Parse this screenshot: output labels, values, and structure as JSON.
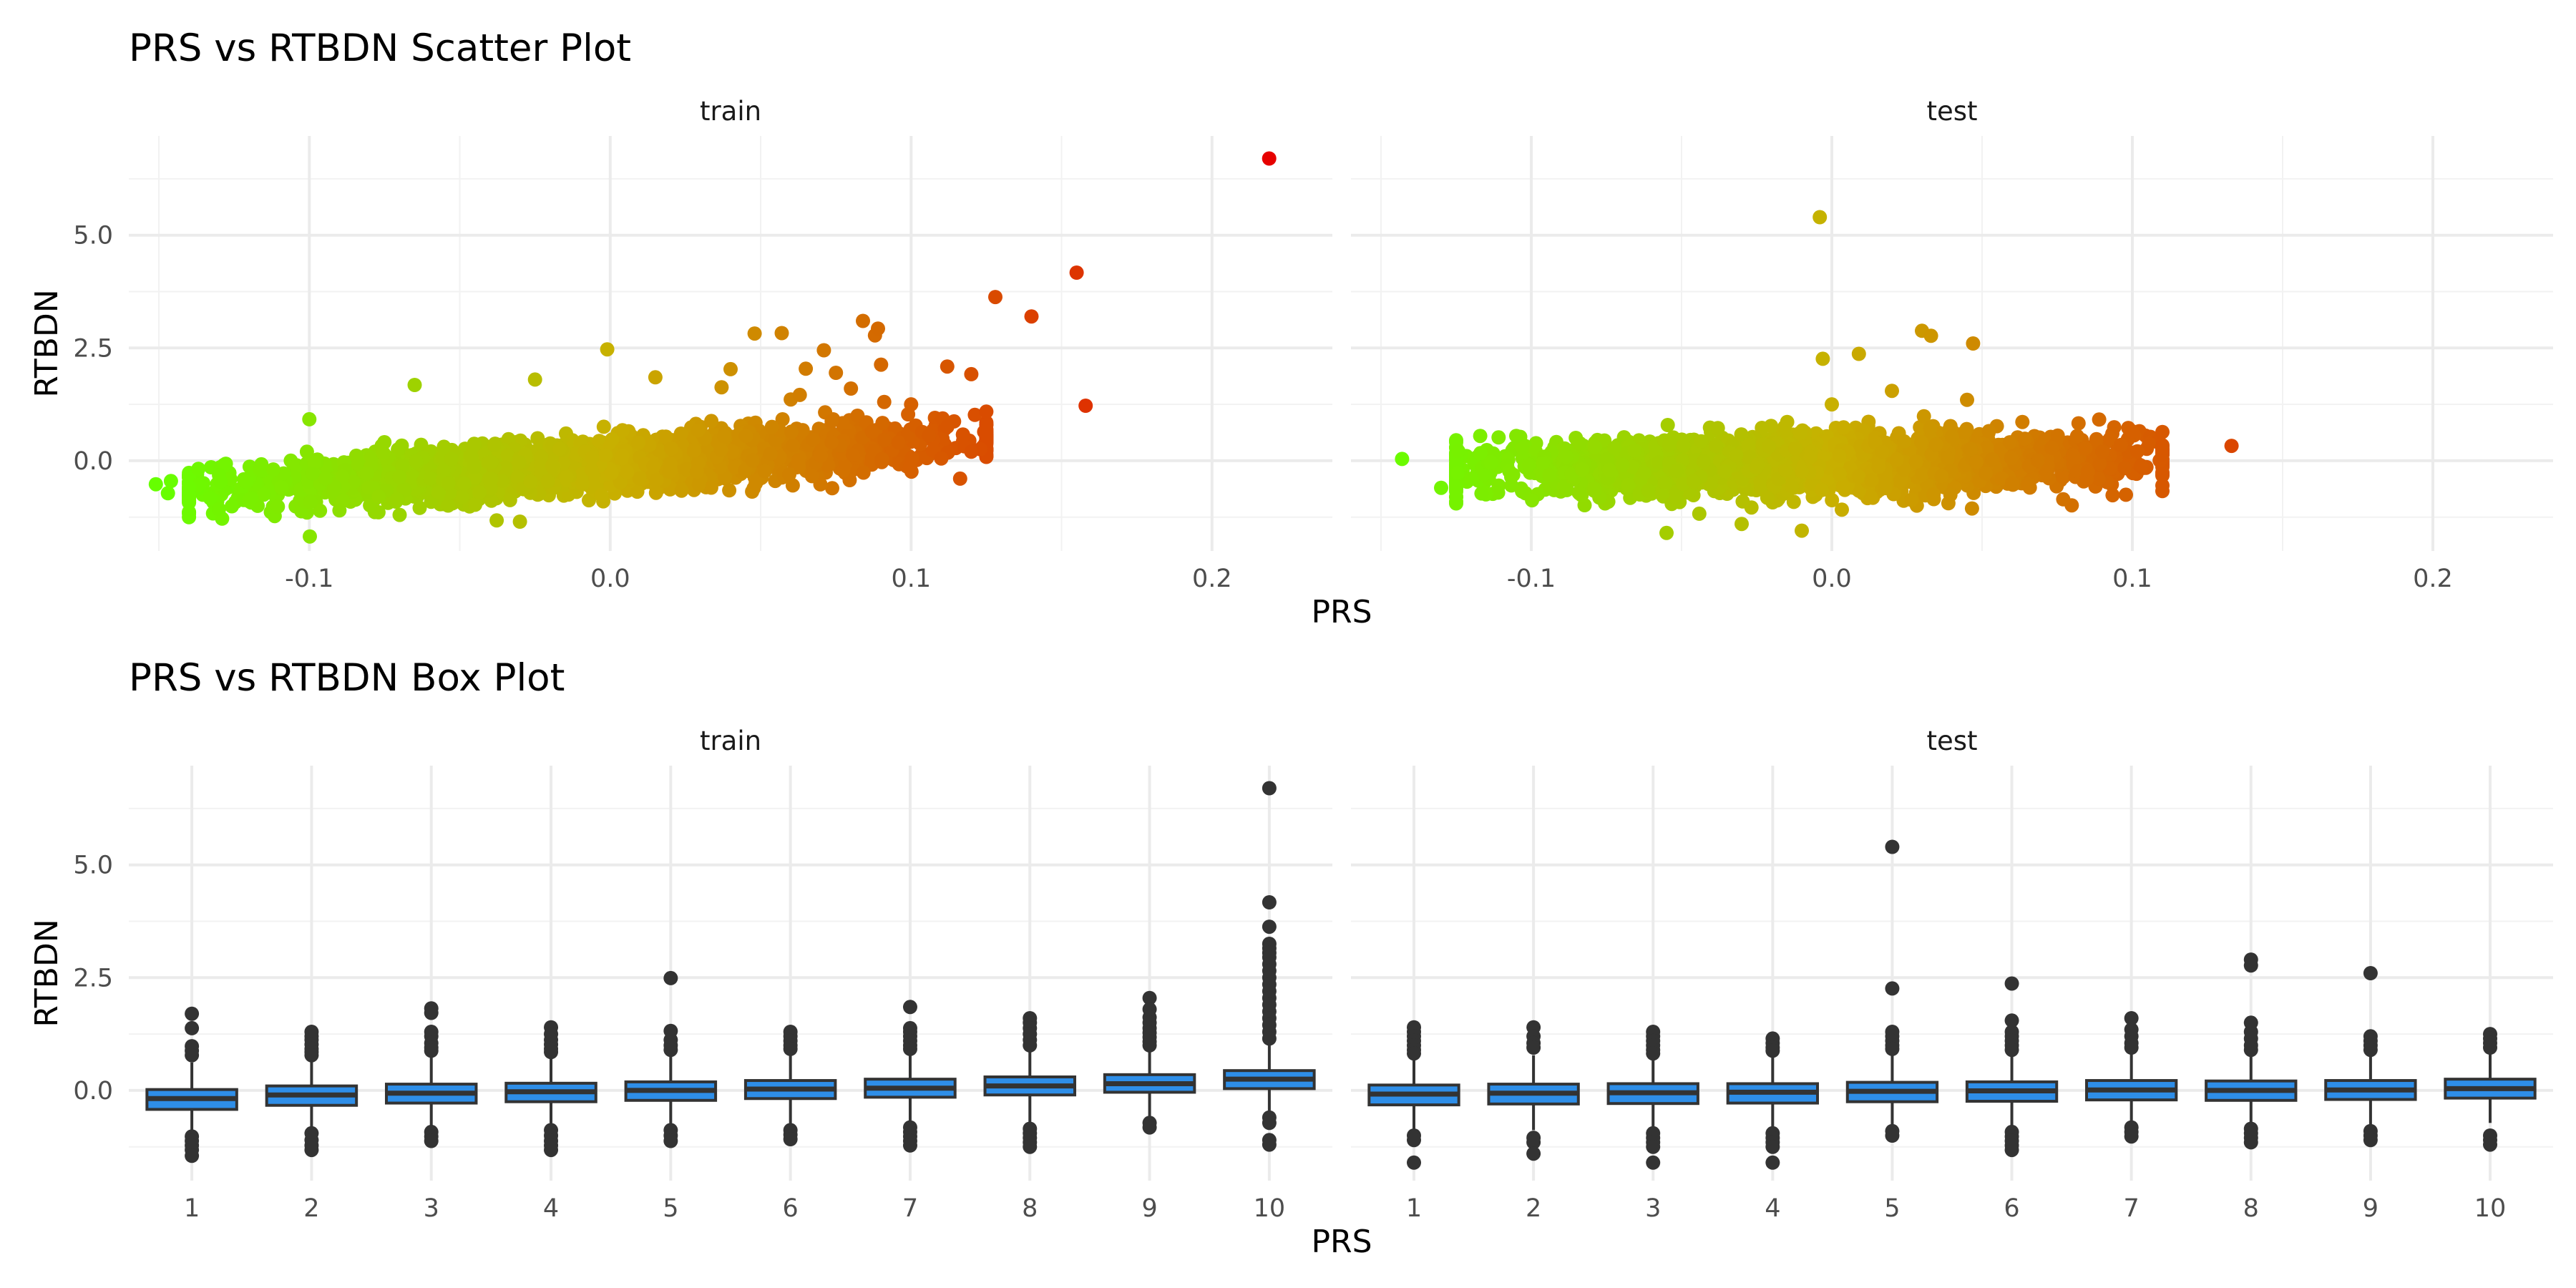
{
  "chart_data": [
    {
      "type": "scatter",
      "title": "PRS vs RTBDN Scatter Plot",
      "xlabel": "PRS",
      "ylabel": "RTBDN",
      "panels": [
        "train",
        "test"
      ],
      "xlim": [
        -0.16,
        0.24
      ],
      "ylim": [
        -2.0,
        7.2
      ],
      "x_ticks": [
        -0.1,
        0.0,
        0.1,
        0.2
      ],
      "x_tick_labels": [
        "-0.1",
        "0.0",
        "0.1",
        "0.2"
      ],
      "y_ticks": [
        0.0,
        2.5,
        5.0
      ],
      "y_tick_labels": [
        "0.0",
        "2.5",
        "5.0"
      ],
      "grid": true,
      "color_scale": {
        "low": "#66ff00",
        "mid": "#c8b000",
        "high": "#e60000"
      },
      "trend": {
        "train": {
          "x_min": -0.14,
          "x_max": 0.125,
          "slope": 4.2,
          "intercept": -0.06,
          "spread": 0.52
        },
        "test": {
          "x_min": -0.125,
          "x_max": 0.11,
          "slope": 1.2,
          "intercept": -0.05,
          "spread": 0.55
        }
      },
      "points": {
        "train": [
          [
            -0.151,
            -0.52
          ],
          [
            -0.147,
            -0.72
          ],
          [
            -0.146,
            -0.45
          ],
          [
            -0.13,
            -0.32
          ],
          [
            -0.1,
            0.92
          ],
          [
            -0.065,
            1.68
          ],
          [
            -0.025,
            1.8
          ],
          [
            -0.001,
            2.47
          ],
          [
            0.015,
            1.85
          ],
          [
            0.037,
            1.63
          ],
          [
            0.04,
            2.03
          ],
          [
            0.048,
            2.82
          ],
          [
            0.057,
            2.83
          ],
          [
            0.06,
            1.36
          ],
          [
            0.063,
            1.46
          ],
          [
            0.065,
            2.04
          ],
          [
            0.071,
            2.45
          ],
          [
            0.075,
            1.95
          ],
          [
            0.08,
            1.6
          ],
          [
            0.084,
            3.1
          ],
          [
            0.088,
            2.78
          ],
          [
            0.089,
            2.93
          ],
          [
            0.09,
            2.13
          ],
          [
            0.099,
            1.03
          ],
          [
            0.1,
            1.25
          ],
          [
            0.112,
            2.09
          ],
          [
            0.12,
            1.92
          ],
          [
            0.128,
            3.63
          ],
          [
            0.14,
            3.2
          ],
          [
            0.155,
            4.17
          ],
          [
            0.158,
            1.22
          ],
          [
            0.219,
            6.7
          ],
          [
            -0.09,
            -1.1
          ],
          [
            -0.03,
            -1.35
          ],
          [
            -0.07,
            -1.2
          ],
          [
            0.11,
            0.05
          ],
          [
            0.12,
            0.2
          ]
        ],
        "test": [
          [
            -0.143,
            0.04
          ],
          [
            -0.13,
            -0.6
          ],
          [
            -0.12,
            -0.4
          ],
          [
            -0.117,
            0.55
          ],
          [
            -0.105,
            0.55
          ],
          [
            -0.004,
            5.4
          ],
          [
            -0.003,
            2.26
          ],
          [
            0.009,
            2.37
          ],
          [
            0.02,
            1.55
          ],
          [
            0.03,
            2.88
          ],
          [
            0.033,
            2.77
          ],
          [
            0.047,
            2.6
          ],
          [
            0.045,
            1.35
          ],
          [
            0.0,
            1.25
          ],
          [
            0.1,
            0.65
          ],
          [
            0.11,
            -0.3
          ],
          [
            0.133,
            0.33
          ],
          [
            -0.055,
            -1.6
          ],
          [
            -0.01,
            -1.55
          ],
          [
            -0.03,
            -1.4
          ],
          [
            0.06,
            -0.5
          ],
          [
            0.09,
            0.2
          ]
        ]
      }
    },
    {
      "type": "box",
      "title": "PRS vs RTBDN Box Plot",
      "xlabel": "PRS",
      "ylabel": "RTBDN",
      "panels": [
        "train",
        "test"
      ],
      "categories": [
        "1",
        "2",
        "3",
        "4",
        "5",
        "6",
        "7",
        "8",
        "9",
        "10"
      ],
      "ylim": [
        -2.0,
        7.2
      ],
      "y_ticks": [
        0.0,
        2.5,
        5.0
      ],
      "y_tick_labels": [
        "0.0",
        "2.5",
        "5.0"
      ],
      "grid": true,
      "box_fill": "#2e8ee8",
      "box_line": "#333333",
      "boxes": {
        "train": [
          {
            "q1": -0.42,
            "median": -0.18,
            "q3": 0.02,
            "low": -1.0,
            "high": 0.62
          },
          {
            "q1": -0.33,
            "median": -0.1,
            "q3": 0.1,
            "low": -0.9,
            "high": 0.7
          },
          {
            "q1": -0.28,
            "median": -0.06,
            "q3": 0.14,
            "low": -0.85,
            "high": 0.75
          },
          {
            "q1": -0.25,
            "median": -0.03,
            "q3": 0.16,
            "low": -0.8,
            "high": 0.78
          },
          {
            "q1": -0.22,
            "median": 0.0,
            "q3": 0.19,
            "low": -0.78,
            "high": 0.8
          },
          {
            "q1": -0.18,
            "median": 0.03,
            "q3": 0.22,
            "low": -0.75,
            "high": 0.83
          },
          {
            "q1": -0.15,
            "median": 0.05,
            "q3": 0.25,
            "low": -0.72,
            "high": 0.86
          },
          {
            "q1": -0.1,
            "median": 0.1,
            "q3": 0.3,
            "low": -0.7,
            "high": 0.9
          },
          {
            "q1": -0.04,
            "median": 0.15,
            "q3": 0.35,
            "low": -0.66,
            "high": 0.95
          },
          {
            "q1": 0.04,
            "median": 0.25,
            "q3": 0.44,
            "low": -0.52,
            "high": 1.0
          }
        ],
        "test": [
          {
            "q1": -0.32,
            "median": -0.08,
            "q3": 0.12,
            "low": -0.9,
            "high": 0.75
          },
          {
            "q1": -0.3,
            "median": -0.06,
            "q3": 0.14,
            "low": -0.88,
            "high": 0.78
          },
          {
            "q1": -0.29,
            "median": -0.05,
            "q3": 0.15,
            "low": -0.85,
            "high": 0.8
          },
          {
            "q1": -0.28,
            "median": -0.04,
            "q3": 0.15,
            "low": -0.85,
            "high": 0.8
          },
          {
            "q1": -0.25,
            "median": -0.02,
            "q3": 0.18,
            "low": -0.8,
            "high": 0.82
          },
          {
            "q1": -0.24,
            "median": -0.01,
            "q3": 0.19,
            "low": -0.8,
            "high": 0.83
          },
          {
            "q1": -0.21,
            "median": 0.01,
            "q3": 0.22,
            "low": -0.77,
            "high": 0.85
          },
          {
            "q1": -0.22,
            "median": 0.0,
            "q3": 0.21,
            "low": -0.78,
            "high": 0.84
          },
          {
            "q1": -0.2,
            "median": 0.01,
            "q3": 0.22,
            "low": -0.76,
            "high": 0.85
          },
          {
            "q1": -0.17,
            "median": 0.04,
            "q3": 0.25,
            "low": -0.72,
            "high": 0.88
          }
        ]
      },
      "outliers": {
        "train": [
          [
            1.7,
            1.38,
            0.98,
            0.88,
            0.78,
            -1.02,
            -1.12,
            -1.22,
            -1.32,
            -1.45
          ],
          [
            1.3,
            1.2,
            1.12,
            1.02,
            0.92,
            0.85,
            0.78,
            -0.95,
            -1.1,
            -1.22,
            -1.32
          ],
          [
            1.82,
            1.72,
            1.3,
            1.2,
            1.05,
            0.95,
            0.88,
            -0.92,
            -1.02,
            -1.12
          ],
          [
            1.4,
            1.25,
            1.12,
            1.02,
            0.92,
            0.85,
            -0.88,
            -1.0,
            -1.12,
            -1.22,
            -1.32
          ],
          [
            2.49,
            1.32,
            1.12,
            1.0,
            0.9,
            -0.88,
            -1.0,
            -1.12
          ],
          [
            1.3,
            1.2,
            1.1,
            1.0,
            0.92,
            -0.88,
            -0.98,
            -1.08
          ],
          [
            1.85,
            1.38,
            1.3,
            1.2,
            1.1,
            1.0,
            0.92,
            -0.82,
            -0.92,
            -1.02,
            -1.12,
            -1.22
          ],
          [
            1.6,
            1.5,
            1.38,
            1.25,
            1.12,
            1.0,
            -0.85,
            -0.95,
            -1.05,
            -1.15,
            -1.25
          ],
          [
            2.05,
            1.8,
            1.62,
            1.5,
            1.38,
            1.28,
            1.18,
            1.08,
            1.0,
            -0.72,
            -0.82
          ],
          [
            6.7,
            4.17,
            3.63,
            3.25,
            3.15,
            3.05,
            2.95,
            2.8,
            2.65,
            2.5,
            2.35,
            2.2,
            2.05,
            1.9,
            1.75,
            1.6,
            1.45,
            1.3,
            1.15,
            -0.6,
            -0.72,
            -1.1,
            -1.2
          ]
        ],
        "test": [
          [
            1.4,
            1.3,
            1.2,
            1.1,
            1.0,
            0.9,
            0.82,
            -1.0,
            -1.1,
            -1.6
          ],
          [
            1.4,
            1.2,
            1.05,
            0.95,
            -1.05,
            -1.15,
            -1.4
          ],
          [
            1.3,
            1.2,
            1.1,
            1.0,
            0.9,
            0.82,
            -0.95,
            -1.05,
            -1.15,
            -1.25,
            -1.6
          ],
          [
            1.15,
            1.05,
            0.95,
            0.88,
            -0.95,
            -1.05,
            -1.15,
            -1.25,
            -1.6
          ],
          [
            5.4,
            2.26,
            1.3,
            1.2,
            1.1,
            1.0,
            0.92,
            -0.9,
            -1.0
          ],
          [
            2.37,
            1.55,
            1.3,
            1.2,
            1.1,
            1.0,
            0.9,
            -0.92,
            -1.02,
            -1.12,
            -1.22,
            -1.32
          ],
          [
            1.6,
            1.35,
            1.2,
            1.05,
            0.95,
            -0.82,
            -0.92,
            -1.02
          ],
          [
            2.9,
            2.77,
            1.5,
            1.3,
            1.15,
            1.0,
            0.9,
            -0.85,
            -0.95,
            -1.05,
            -1.15
          ],
          [
            2.6,
            1.2,
            1.1,
            1.0,
            0.9,
            -0.9,
            -1.0,
            -1.1
          ],
          [
            1.25,
            1.15,
            1.05,
            0.95,
            -1.0,
            -1.1,
            -1.2
          ]
        ]
      }
    }
  ]
}
